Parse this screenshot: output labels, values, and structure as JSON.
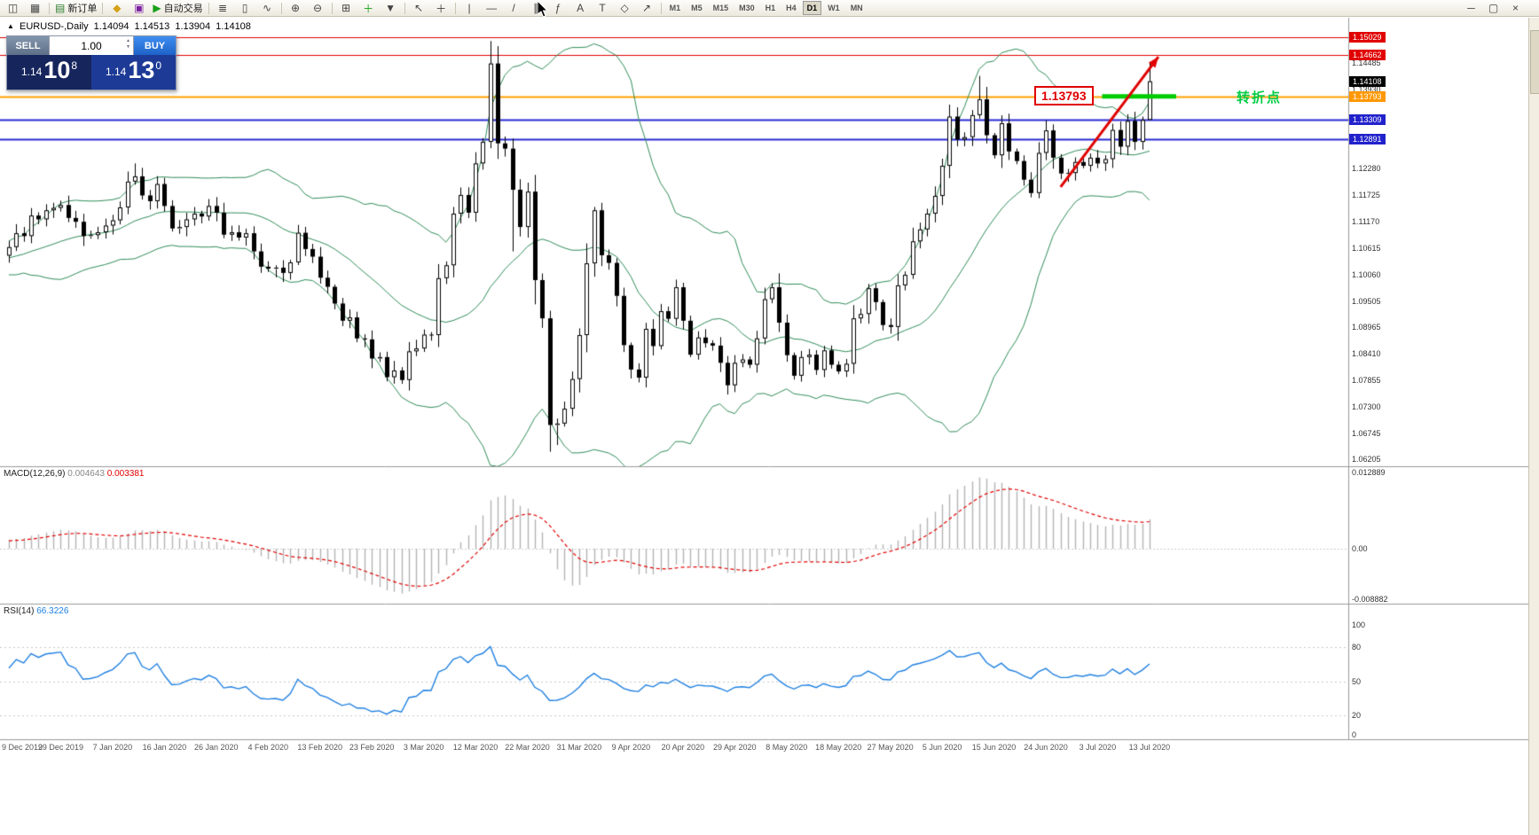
{
  "toolbar": {
    "groups": [
      {
        "items": [
          {
            "name": "new-chart-icon",
            "glyph": "◫"
          },
          {
            "name": "chart-profiles-icon",
            "glyph": "▦"
          }
        ]
      },
      {
        "items": [
          {
            "name": "new-order-button",
            "glyph": "▤",
            "glyph_color": "#2e7d32",
            "label": "新订单"
          }
        ]
      },
      {
        "items": [
          {
            "name": "metaeditor-icon",
            "glyph": "◆",
            "glyph_color": "#d4a017"
          },
          {
            "name": "terminal-icon",
            "glyph": "▣",
            "glyph_color": "#7b1fa2"
          },
          {
            "name": "autotrade-button",
            "glyph": "▶",
            "glyph_color": "#18a018",
            "label": "自动交易"
          }
        ]
      },
      {
        "items": [
          {
            "name": "bar-chart-icon",
            "glyph": "≣"
          },
          {
            "name": "candlestick-chart-icon",
            "glyph": "▯"
          },
          {
            "name": "line-chart-icon",
            "glyph": "∿"
          }
        ]
      },
      {
        "items": [
          {
            "name": "zoom-in-icon",
            "glyph": "⊕"
          },
          {
            "name": "zoom-out-icon",
            "glyph": "⊖"
          }
        ]
      },
      {
        "items": [
          {
            "name": "tile-windows-icon",
            "glyph": "⊞"
          },
          {
            "name": "add-indicator-icon",
            "glyph": "＋",
            "glyph_color": "#18a018"
          },
          {
            "name": "templates-icon",
            "glyph": "▼"
          }
        ]
      },
      {
        "items": [
          {
            "name": "cursor-icon",
            "glyph": "↖"
          },
          {
            "name": "crosshair-icon",
            "glyph": "＋"
          }
        ]
      },
      {
        "items": [
          {
            "name": "vertical-line-icon",
            "glyph": "|"
          },
          {
            "name": "horizontal-line-icon",
            "glyph": "—"
          },
          {
            "name": "trendline-icon",
            "glyph": "/"
          },
          {
            "name": "channel-icon",
            "glyph": "∥"
          },
          {
            "name": "fibonacci-icon",
            "glyph": "ƒ"
          },
          {
            "name": "text-icon",
            "glyph": "A"
          },
          {
            "name": "label-icon",
            "glyph": "T"
          },
          {
            "name": "shapes-icon",
            "glyph": "◇"
          },
          {
            "name": "arrows-icon",
            "glyph": "↗"
          }
        ]
      }
    ],
    "timeframes": {
      "items": [
        "M1",
        "M5",
        "M15",
        "M30",
        "H1",
        "H4",
        "D1",
        "W1",
        "MN"
      ],
      "active": "D1"
    },
    "window_controls": [
      {
        "name": "minimize-icon",
        "glyph": "─"
      },
      {
        "name": "restore-icon",
        "glyph": "▢"
      },
      {
        "name": "close-icon",
        "glyph": "×"
      }
    ]
  },
  "chart_header": {
    "symbol": "EURUSD-,Daily",
    "open": "1.14094",
    "high": "1.14513",
    "low": "1.13904",
    "close": "1.14108"
  },
  "trade_panel": {
    "sell_label": "SELL",
    "buy_label": "BUY",
    "volume": "1.00",
    "sell_price": {
      "small": "1.14",
      "big": "10",
      "sup": "8"
    },
    "buy_price": {
      "small": "1.14",
      "big": "13",
      "sup": "0"
    }
  },
  "annotations": {
    "level_label": "1.13793",
    "turning_point": "转折点"
  },
  "price_axis": {
    "ticks": [
      "1.14485",
      "1.13930",
      "1.12280",
      "1.11725",
      "1.11170",
      "1.10615",
      "1.10060",
      "1.09505",
      "1.08965",
      "1.08410",
      "1.07855",
      "1.07300",
      "1.06745",
      "1.06205"
    ],
    "tags": [
      {
        "value": "1.15029",
        "color": "#e00000"
      },
      {
        "value": "1.14662",
        "color": "#e00000"
      },
      {
        "value": "1.14108",
        "color": "#000000"
      },
      {
        "value": "1.13793",
        "color": "#ff9800"
      },
      {
        "value": "1.13309",
        "color": "#2222cc"
      },
      {
        "value": "1.12891",
        "color": "#2222cc"
      }
    ]
  },
  "indicators": {
    "macd": {
      "name": "MACD(12,26,9)",
      "main": "0.004643",
      "signal": "0.003381",
      "axis": [
        "0.012889",
        "0.00",
        "-0.008882"
      ],
      "histogram_color": "#b4b4b4",
      "signal_color": "#e00000"
    },
    "rsi": {
      "name": "RSI(14)",
      "value": "66.3226",
      "axis": [
        "100",
        "80",
        "50",
        "20",
        "0"
      ],
      "levels": [
        80,
        50,
        20
      ],
      "line_color": "#2080e0"
    }
  },
  "date_axis": [
    "9 Dec 2019",
    "29 Dec 2019",
    "7 Jan 2020",
    "16 Jan 2020",
    "26 Jan 2020",
    "4 Feb 2020",
    "13 Feb 2020",
    "23 Feb 2020",
    "3 Mar 2020",
    "12 Mar 2020",
    "22 Mar 2020",
    "31 Mar 2020",
    "9 Apr 2020",
    "20 Apr 2020",
    "29 Apr 2020",
    "8 May 2020",
    "18 May 2020",
    "27 May 2020",
    "5 Jun 2020",
    "15 Jun 2020",
    "24 Jun 2020",
    "3 Jul 2020",
    "13 Jul 2020"
  ],
  "chart_data": {
    "type": "candlestick",
    "symbol": "EURUSD-",
    "timeframe": "Daily",
    "y_axis_range": [
      1.06205,
      1.15029
    ],
    "last_candle": {
      "open": 1.14094,
      "high": 1.14513,
      "low": 1.13904,
      "close": 1.14108
    },
    "closes": [
      1.1064,
      1.1093,
      1.1087,
      1.113,
      1.1122,
      1.1141,
      1.1146,
      1.1152,
      1.1125,
      1.1117,
      1.1087,
      1.1089,
      1.1095,
      1.1109,
      1.112,
      1.1147,
      1.1201,
      1.1212,
      1.1172,
      1.116,
      1.1196,
      1.115,
      1.1103,
      1.1106,
      1.1122,
      1.1134,
      1.1128,
      1.115,
      1.1136,
      1.109,
      1.1095,
      1.1084,
      1.1093,
      1.1055,
      1.1023,
      1.1019,
      1.1021,
      1.101,
      1.1032,
      1.1094,
      1.106,
      1.1044,
      1.1,
      1.0981,
      1.0946,
      1.091,
      1.0917,
      1.0873,
      1.0871,
      1.0831,
      1.0834,
      1.0792,
      1.0806,
      1.0786,
      1.0846,
      1.0852,
      1.0881,
      1.088,
      1.0999,
      1.1026,
      1.1134,
      1.1173,
      1.1136,
      1.1239,
      1.1284,
      1.1448,
      1.1281,
      1.127,
      1.1184,
      1.1106,
      1.118,
      1.0995,
      1.0915,
      1.0692,
      1.0695,
      1.0726,
      1.0788,
      1.088,
      1.103,
      1.1141,
      1.1047,
      1.1031,
      1.0962,
      1.0859,
      1.0808,
      1.0791,
      1.0893,
      1.0857,
      1.093,
      1.0914,
      1.098,
      1.091,
      1.0839,
      1.0875,
      1.0863,
      1.0858,
      1.0822,
      1.0775,
      1.0822,
      1.0829,
      1.0818,
      1.0873,
      1.0955,
      1.098,
      1.0906,
      1.0838,
      1.0795,
      1.0834,
      1.0839,
      1.0807,
      1.0848,
      1.0818,
      1.0804,
      1.082,
      1.0915,
      1.0924,
      1.0978,
      1.0949,
      1.0901,
      1.0897,
      1.0984,
      1.1006,
      1.1076,
      1.1101,
      1.1134,
      1.1171,
      1.1234,
      1.1337,
      1.1289,
      1.1294,
      1.134,
      1.1373,
      1.1298,
      1.1256,
      1.1323,
      1.1264,
      1.1244,
      1.1205,
      1.1177,
      1.1261,
      1.1308,
      1.1251,
      1.1218,
      1.1219,
      1.1242,
      1.1234,
      1.1251,
      1.1239,
      1.1248,
      1.1309,
      1.1274,
      1.1328,
      1.1284,
      1.133,
      1.14108
    ],
    "extremes": {
      "16": {
        "h": 1.1222
      },
      "17": {
        "h": 1.1239
      },
      "53": {
        "l": 1.0778
      },
      "65": {
        "h": 1.1495
      },
      "68": {
        "l": 1.1055
      },
      "73": {
        "l": 1.0636
      },
      "74": {
        "l": 1.065
      },
      "79": {
        "h": 1.1148
      },
      "127": {
        "h": 1.1362
      },
      "131": {
        "h": 1.1422
      },
      "138": {
        "l": 1.1168
      },
      "154": {
        "h": 1.14513,
        "l": 1.13904
      }
    },
    "levels": [
      {
        "price": 1.15029,
        "color": "#e00000",
        "width": 1
      },
      {
        "price": 1.14662,
        "color": "#e00000",
        "width": 1
      },
      {
        "price": 1.13793,
        "color": "#ffa000",
        "width": 2
      },
      {
        "price": 1.13309,
        "color": "#2a2ad4",
        "width": 2
      },
      {
        "price": 1.12891,
        "color": "#2a2ad4",
        "width": 2
      }
    ],
    "green_segment": {
      "price": 1.13793,
      "i1": 147.6,
      "i2": 157.6,
      "color": "#00cc00"
    },
    "trend_arrow": {
      "i1": 142,
      "p1": 1.119,
      "i2": 155.2,
      "p2": 1.1462,
      "color": "#e00000"
    },
    "bollinger": {
      "period": 20,
      "deviation": 2,
      "color": "#2e8b57"
    }
  }
}
